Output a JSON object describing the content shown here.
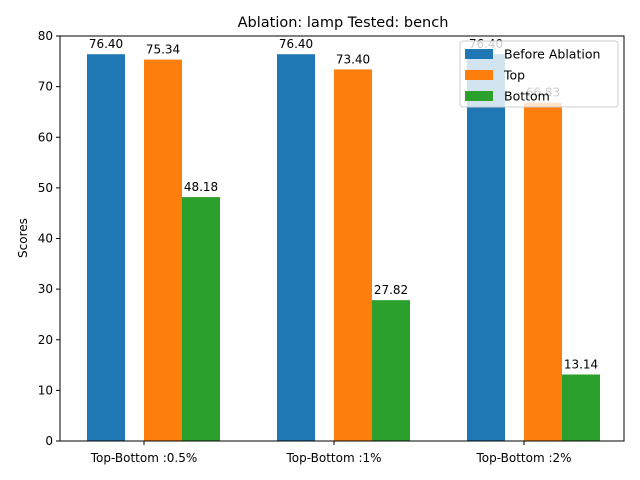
{
  "chart_data": {
    "type": "bar",
    "title": "Ablation: lamp Tested: bench",
    "xlabel": "",
    "ylabel": "Scores",
    "categories": [
      "Top-Bottom :0.5%",
      "Top-Bottom :1%",
      "Top-Bottom :2%"
    ],
    "series": [
      {
        "name": "Before Ablation",
        "color": "#1f77b4",
        "values": [
          76.4,
          76.4,
          76.4
        ],
        "labels": [
          "76.40",
          "76.40",
          "76.40"
        ]
      },
      {
        "name": "Top",
        "color": "#ff7f0e",
        "values": [
          75.34,
          73.4,
          66.83
        ],
        "labels": [
          "75.34",
          "73.40",
          "66.83"
        ]
      },
      {
        "name": "Bottom",
        "color": "#2ca02c",
        "values": [
          48.18,
          27.82,
          13.14
        ],
        "labels": [
          "48.18",
          "27.82",
          "13.14"
        ]
      }
    ],
    "ylim": [
      0,
      80
    ],
    "yticks": [
      0,
      10,
      20,
      30,
      40,
      50,
      60,
      70,
      80
    ],
    "grid": false,
    "legend_position": "top-right"
  }
}
